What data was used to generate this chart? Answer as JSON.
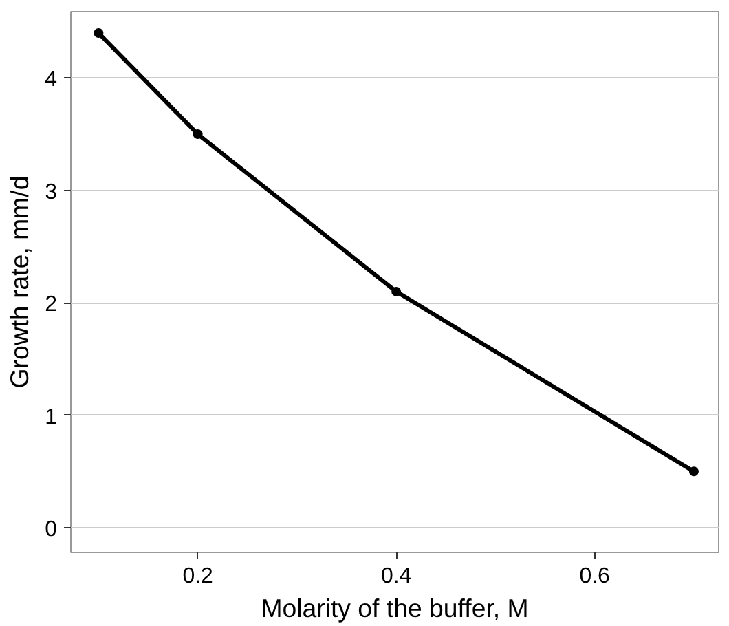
{
  "chart_data": {
    "type": "line",
    "xlabel": "Molarity of the buffer, M",
    "ylabel": "Growth rate, mm/d",
    "x": [
      0.1,
      0.2,
      0.4,
      0.7
    ],
    "series": [
      {
        "color": "#000000",
        "values": [
          4.4,
          3.5,
          2.1,
          0.5
        ]
      }
    ],
    "xlim": [
      0.072,
      0.725
    ],
    "ylim": [
      -0.22,
      4.59
    ],
    "xticks": [
      0.2,
      0.4,
      0.6
    ],
    "yticks": [
      0,
      1,
      2,
      3,
      4
    ],
    "grid": "y",
    "marker": "circle",
    "line_style": "solid"
  }
}
